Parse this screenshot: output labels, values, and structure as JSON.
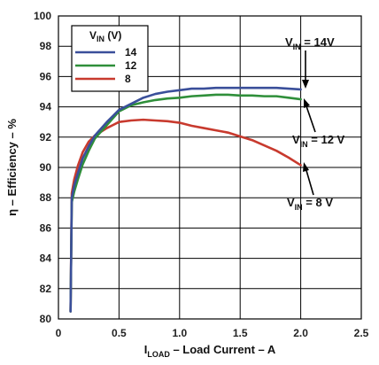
{
  "chart_data": {
    "type": "line",
    "title": "",
    "xlabel": {
      "main": "I",
      "sub": "LOAD",
      "rest": " – Load Current – A"
    },
    "ylabel": "η – Efficiency – %",
    "xlim": [
      0,
      2.5
    ],
    "ylim": [
      80,
      100
    ],
    "xticks": [
      "0",
      "0.5",
      "1.0",
      "1.5",
      "2.0",
      "2.5"
    ],
    "yticks": [
      "80",
      "82",
      "84",
      "86",
      "88",
      "90",
      "92",
      "94",
      "96",
      "98",
      "100"
    ],
    "grid": true,
    "legend": {
      "placement": "top-left",
      "title_main": "V",
      "title_sub": "IN",
      "title_rest": " (V)"
    },
    "series": [
      {
        "name": "14",
        "color": "#3a4f9a",
        "points": [
          [
            0.1,
            80.5
          ],
          [
            0.11,
            88.0
          ],
          [
            0.13,
            88.8
          ],
          [
            0.16,
            89.6
          ],
          [
            0.2,
            90.6
          ],
          [
            0.25,
            91.4
          ],
          [
            0.3,
            92.1
          ],
          [
            0.4,
            93.0
          ],
          [
            0.5,
            93.8
          ],
          [
            0.6,
            94.2
          ],
          [
            0.7,
            94.6
          ],
          [
            0.8,
            94.85
          ],
          [
            0.9,
            95.0
          ],
          [
            1.0,
            95.1
          ],
          [
            1.1,
            95.2
          ],
          [
            1.2,
            95.2
          ],
          [
            1.3,
            95.25
          ],
          [
            1.4,
            95.25
          ],
          [
            1.5,
            95.25
          ],
          [
            1.6,
            95.25
          ],
          [
            1.7,
            95.25
          ],
          [
            1.8,
            95.25
          ],
          [
            1.9,
            95.2
          ],
          [
            2.0,
            95.15
          ]
        ]
      },
      {
        "name": "12",
        "color": "#2f8f3a",
        "points": [
          [
            0.1,
            80.5
          ],
          [
            0.11,
            87.7
          ],
          [
            0.13,
            88.4
          ],
          [
            0.16,
            89.2
          ],
          [
            0.2,
            90.2
          ],
          [
            0.25,
            91.1
          ],
          [
            0.3,
            91.9
          ],
          [
            0.4,
            92.8
          ],
          [
            0.5,
            93.7
          ],
          [
            0.6,
            94.1
          ],
          [
            0.7,
            94.3
          ],
          [
            0.8,
            94.45
          ],
          [
            0.9,
            94.55
          ],
          [
            1.0,
            94.6
          ],
          [
            1.1,
            94.7
          ],
          [
            1.2,
            94.75
          ],
          [
            1.3,
            94.8
          ],
          [
            1.4,
            94.8
          ],
          [
            1.5,
            94.75
          ],
          [
            1.6,
            94.75
          ],
          [
            1.7,
            94.7
          ],
          [
            1.8,
            94.7
          ],
          [
            1.9,
            94.6
          ],
          [
            2.0,
            94.5
          ]
        ]
      },
      {
        "name": "8",
        "color": "#c83a2e",
        "points": [
          [
            0.1,
            80.5
          ],
          [
            0.11,
            88.3
          ],
          [
            0.13,
            89.2
          ],
          [
            0.16,
            90.1
          ],
          [
            0.2,
            91.0
          ],
          [
            0.25,
            91.7
          ],
          [
            0.3,
            92.1
          ],
          [
            0.4,
            92.6
          ],
          [
            0.5,
            93.0
          ],
          [
            0.6,
            93.1
          ],
          [
            0.7,
            93.15
          ],
          [
            0.8,
            93.1
          ],
          [
            0.9,
            93.05
          ],
          [
            1.0,
            92.95
          ],
          [
            1.1,
            92.75
          ],
          [
            1.2,
            92.6
          ],
          [
            1.3,
            92.45
          ],
          [
            1.4,
            92.3
          ],
          [
            1.5,
            92.05
          ],
          [
            1.6,
            91.8
          ],
          [
            1.7,
            91.45
          ],
          [
            1.8,
            91.1
          ],
          [
            1.9,
            90.65
          ],
          [
            2.0,
            90.15
          ]
        ]
      }
    ],
    "annotations": [
      {
        "id": "vin-14",
        "main": "V",
        "sub": "IN",
        "rest": " = 14V"
      },
      {
        "id": "vin-12",
        "main": "V",
        "sub": "IN",
        "rest": " = 12 V"
      },
      {
        "id": "vin-8",
        "main": "V",
        "sub": "IN",
        "rest": " = 8 V"
      }
    ]
  }
}
